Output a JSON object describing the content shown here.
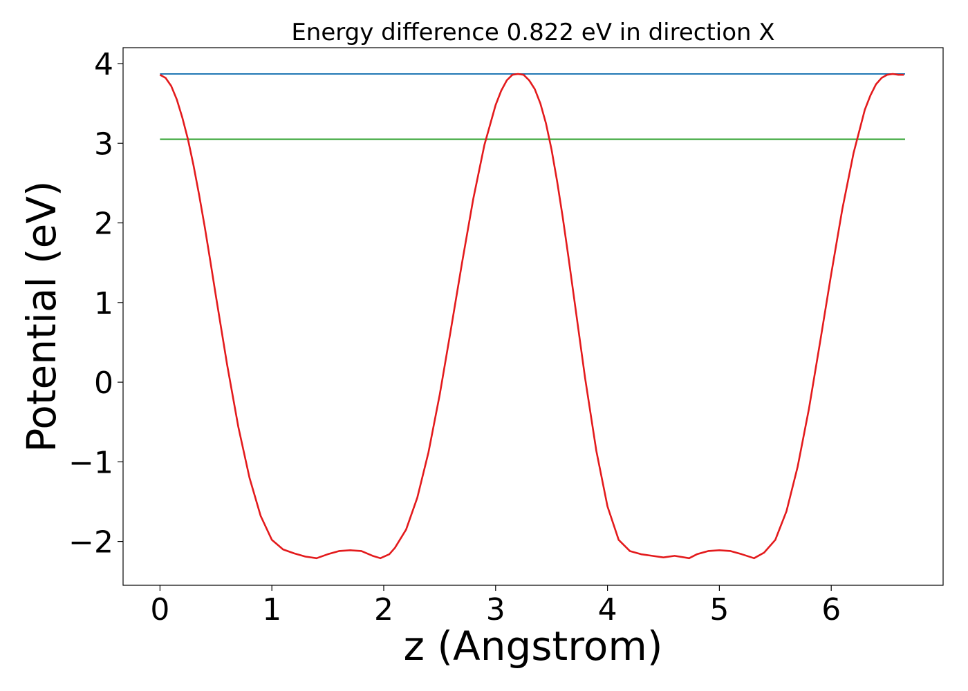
{
  "chart_data": {
    "type": "line",
    "title": "Energy difference 0.822 eV in direction X",
    "xlabel": "z (Angstrom)",
    "ylabel": "Potential (eV)",
    "xlim": [
      -0.33,
      7.0
    ],
    "ylim": [
      -2.55,
      4.2
    ],
    "xticks": [
      0,
      1,
      2,
      3,
      4,
      5,
      6
    ],
    "xtick_labels": [
      "0",
      "1",
      "2",
      "3",
      "4",
      "5",
      "6"
    ],
    "yticks": [
      -2,
      -1,
      0,
      1,
      2,
      3,
      4
    ],
    "ytick_labels": [
      "−2",
      "−1",
      "0",
      "1",
      "2",
      "3",
      "4"
    ],
    "grid": false,
    "series": [
      {
        "color": "#e31a1c",
        "x": [
          0.0,
          0.05,
          0.1,
          0.15,
          0.2,
          0.25,
          0.3,
          0.35,
          0.4,
          0.45,
          0.5,
          0.6,
          0.7,
          0.8,
          0.9,
          1.0,
          1.1,
          1.2,
          1.3,
          1.4,
          1.5,
          1.6,
          1.7,
          1.8,
          1.9,
          1.97,
          2.05,
          2.1,
          2.2,
          2.3,
          2.4,
          2.5,
          2.6,
          2.7,
          2.8,
          2.9,
          3.0,
          3.05,
          3.1,
          3.15,
          3.2,
          3.25,
          3.3,
          3.35,
          3.4,
          3.45,
          3.5,
          3.55,
          3.6,
          3.65,
          3.7,
          3.8,
          3.9,
          4.0,
          4.1,
          4.2,
          4.3,
          4.4,
          4.5,
          4.6,
          4.73,
          4.8,
          4.9,
          5.0,
          5.1,
          5.2,
          5.31,
          5.4,
          5.5,
          5.6,
          5.7,
          5.8,
          5.9,
          6.0,
          6.1,
          6.2,
          6.3,
          6.35,
          6.4,
          6.45,
          6.5,
          6.55,
          6.6,
          6.65
        ],
        "y": [
          3.86,
          3.82,
          3.72,
          3.55,
          3.32,
          3.05,
          2.72,
          2.35,
          1.95,
          1.52,
          1.08,
          0.22,
          -0.56,
          -1.2,
          -1.68,
          -1.98,
          -2.1,
          -2.15,
          -2.19,
          -2.21,
          -2.16,
          -2.12,
          -2.11,
          -2.12,
          -2.18,
          -2.21,
          -2.16,
          -2.08,
          -1.85,
          -1.45,
          -0.88,
          -0.16,
          0.66,
          1.5,
          2.3,
          2.98,
          3.48,
          3.66,
          3.79,
          3.86,
          3.87,
          3.86,
          3.79,
          3.68,
          3.5,
          3.25,
          2.92,
          2.52,
          2.07,
          1.58,
          1.07,
          0.05,
          -0.86,
          -1.56,
          -1.98,
          -2.12,
          -2.16,
          -2.18,
          -2.2,
          -2.18,
          -2.21,
          -2.16,
          -2.12,
          -2.11,
          -2.12,
          -2.16,
          -2.21,
          -2.14,
          -1.98,
          -1.62,
          -1.06,
          -0.34,
          0.5,
          1.36,
          2.18,
          2.88,
          3.42,
          3.6,
          3.74,
          3.82,
          3.86,
          3.87,
          3.86,
          3.86
        ]
      },
      {
        "color": "#1f77b4",
        "x": [
          0.0,
          6.66
        ],
        "y": [
          3.87,
          3.87
        ]
      },
      {
        "color": "#2ca02c",
        "x": [
          0.0,
          6.66
        ],
        "y": [
          3.05,
          3.05
        ]
      }
    ]
  }
}
